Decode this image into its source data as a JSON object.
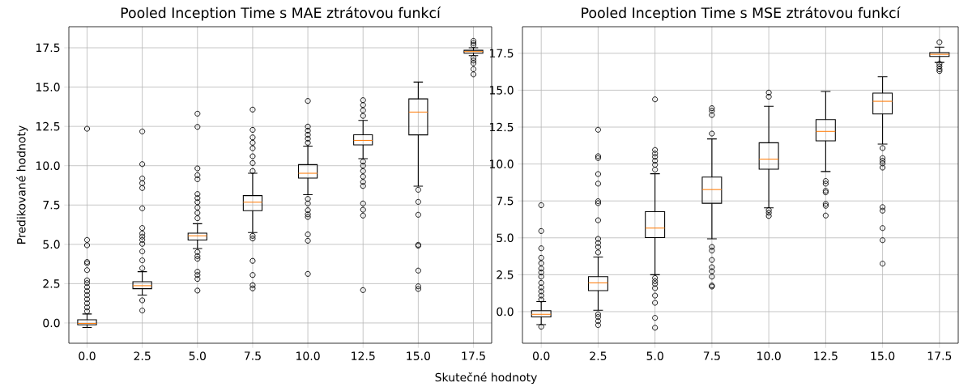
{
  "chart_data": [
    {
      "type": "box",
      "title": "Pooled Inception Time s MAE ztrátovou funkcí",
      "xlabel": "Skutečné hodnoty",
      "ylabel": "Predikované hodnoty",
      "categories": [
        "0.0",
        "2.5",
        "5.0",
        "7.5",
        "10.0",
        "12.5",
        "15.0",
        "17.5"
      ],
      "boxes": [
        {
          "low": -0.29,
          "q1": -0.12,
          "median": -0.03,
          "q3": 0.2,
          "high": 0.57,
          "outliers": [
            12.35,
            5.28,
            4.94,
            3.88,
            3.79,
            3.36,
            2.71,
            2.54,
            2.28,
            2.02,
            1.77,
            1.51,
            1.25,
            0.99,
            0.74
          ]
        },
        {
          "low": 1.77,
          "q1": 2.18,
          "median": 2.37,
          "q3": 2.62,
          "high": 3.26,
          "outliers": [
            12.18,
            10.1,
            9.19,
            8.89,
            8.58,
            7.29,
            6.04,
            5.69,
            5.49,
            5.28,
            5.03,
            4.55,
            3.98,
            3.48,
            1.44,
            0.79
          ]
        },
        {
          "low": 4.73,
          "q1": 5.27,
          "median": 5.54,
          "q3": 5.71,
          "high": 6.31,
          "outliers": [
            13.31,
            12.47,
            9.83,
            9.4,
            9.14,
            8.2,
            7.94,
            7.68,
            7.34,
            7.0,
            6.66,
            4.51,
            4.25,
            4.08,
            3.26,
            3.05,
            2.8,
            2.06
          ]
        },
        {
          "low": 5.75,
          "q1": 7.14,
          "median": 7.68,
          "q3": 8.1,
          "high": 9.52,
          "outliers": [
            13.57,
            12.28,
            11.8,
            11.46,
            11.11,
            10.6,
            10.17,
            9.66,
            5.54,
            5.37,
            3.95,
            3.05,
            2.4,
            2.2
          ]
        },
        {
          "low": 8.16,
          "q1": 9.21,
          "median": 9.52,
          "q3": 10.07,
          "high": 11.25,
          "outliers": [
            14.12,
            12.49,
            12.23,
            11.97,
            11.72,
            11.46,
            7.89,
            7.6,
            7.17,
            6.91,
            6.74,
            5.63,
            5.23,
            3.12
          ]
        },
        {
          "low": 10.45,
          "q1": 11.32,
          "median": 11.61,
          "q3": 11.97,
          "high": 12.88,
          "outliers": [
            14.17,
            13.86,
            13.52,
            13.17,
            10.26,
            10.0,
            9.66,
            9.31,
            8.97,
            8.71,
            7.6,
            7.2,
            6.83,
            2.09
          ]
        },
        {
          "low": 8.7,
          "q1": 11.96,
          "median": 13.41,
          "q3": 14.25,
          "high": 15.32,
          "outliers": [
            8.47,
            7.7,
            6.88,
            4.97,
            4.91,
            3.33,
            2.33,
            2.16
          ]
        },
        {
          "low": 17.0,
          "q1": 17.15,
          "median": 17.26,
          "q3": 17.34,
          "high": 17.5,
          "outliers": [
            17.94,
            17.8,
            17.67,
            16.86,
            16.69,
            16.52,
            16.14,
            15.81
          ]
        }
      ],
      "ylim": [
        -1.29,
        18.84
      ],
      "yticks": [
        {
          "value": 0,
          "label": "0.0"
        },
        {
          "value": 2.5,
          "label": "2.5"
        },
        {
          "value": 5,
          "label": "5.0"
        },
        {
          "value": 7.5,
          "label": "7.5"
        },
        {
          "value": 10,
          "label": "10.0"
        },
        {
          "value": 12.5,
          "label": "12.5"
        },
        {
          "value": 15,
          "label": "15.0"
        },
        {
          "value": 17.5,
          "label": "17.5"
        }
      ],
      "grid": true
    },
    {
      "type": "box",
      "title": "Pooled Inception Time s MSE ztrátovou funkcí",
      "categories": [
        "0.0",
        "2.5",
        "5.0",
        "7.5",
        "10.0",
        "12.5",
        "15.0",
        "17.5"
      ],
      "boxes": [
        {
          "low": -0.88,
          "q1": -0.36,
          "median": -0.18,
          "q3": 0.07,
          "high": 0.68,
          "outliers": [
            7.21,
            5.46,
            4.29,
            3.65,
            3.28,
            2.92,
            2.65,
            2.37,
            1.95,
            1.64,
            1.37,
            1.09,
            0.82,
            -1.02
          ]
        },
        {
          "low": 0.09,
          "q1": 1.42,
          "median": 1.95,
          "q3": 2.37,
          "high": 3.7,
          "outliers": [
            12.32,
            10.53,
            10.4,
            9.32,
            8.67,
            7.48,
            7.35,
            6.19,
            4.93,
            4.65,
            4.38,
            4.01,
            -0.18,
            -0.36,
            -0.64,
            -0.91
          ]
        },
        {
          "low": 2.5,
          "q1": 5.02,
          "median": 5.66,
          "q3": 6.77,
          "high": 9.34,
          "outliers": [
            14.38,
            10.95,
            10.71,
            10.49,
            10.22,
            9.95,
            9.62,
            2.28,
            2.06,
            1.88,
            1.59,
            1.09,
            0.6,
            -0.42,
            -1.09
          ]
        },
        {
          "low": 4.93,
          "q1": 7.34,
          "median": 8.27,
          "q3": 9.11,
          "high": 11.7,
          "outliers": [
            13.78,
            13.6,
            13.32,
            12.06,
            4.38,
            4.14,
            3.5,
            3.01,
            2.74,
            2.37,
            1.77,
            1.7
          ]
        },
        {
          "low": 7.03,
          "q1": 9.65,
          "median": 10.33,
          "q3": 11.44,
          "high": 13.91,
          "outliers": [
            14.84,
            14.56,
            6.88,
            6.7,
            6.48
          ]
        },
        {
          "low": 9.49,
          "q1": 11.57,
          "median": 12.21,
          "q3": 13.01,
          "high": 14.91,
          "outliers": [
            8.85,
            8.67,
            8.19,
            8.08,
            7.3,
            7.17,
            6.51
          ]
        },
        {
          "low": 11.35,
          "q1": 13.39,
          "median": 14.25,
          "q3": 14.8,
          "high": 15.91,
          "outliers": [
            11.08,
            10.4,
            10.22,
            10.04,
            9.76,
            7.08,
            6.84,
            5.66,
            4.84,
            3.25
          ]
        },
        {
          "low": 16.88,
          "q1": 17.28,
          "median": 17.43,
          "q3": 17.55,
          "high": 17.92,
          "outliers": [
            18.25,
            16.79,
            16.61,
            16.42,
            16.3
          ]
        }
      ],
      "ylim": [
        -2.14,
        19.3
      ],
      "yticks": [
        {
          "value": 0,
          "label": "0.0"
        },
        {
          "value": 2.5,
          "label": "2.5"
        },
        {
          "value": 5,
          "label": "5.0"
        },
        {
          "value": 7.5,
          "label": "7.5"
        },
        {
          "value": 10,
          "label": "10.0"
        },
        {
          "value": 12.5,
          "label": "12.5"
        },
        {
          "value": 15,
          "label": "15.0"
        },
        {
          "value": 17.5,
          "label": "17.5"
        }
      ],
      "grid": true
    }
  ]
}
